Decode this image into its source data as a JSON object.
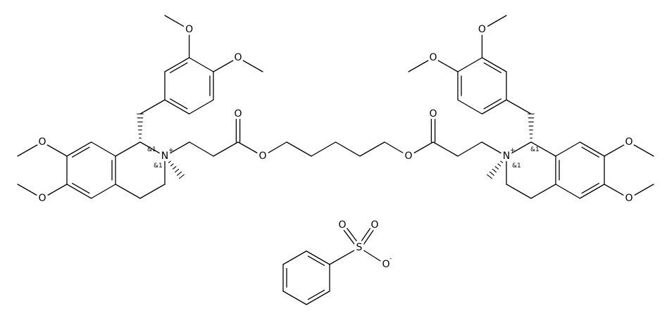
{
  "atoms": [
    {
      "label": "O"
    },
    {
      "label": "O"
    },
    {
      "label": "O"
    },
    {
      "label": "O"
    },
    {
      "label": "N",
      "charge": "+"
    },
    {
      "label": "O"
    },
    {
      "label": "O"
    },
    {
      "label": "O"
    },
    {
      "label": "O"
    },
    {
      "label": "N",
      "charge": "+"
    },
    {
      "label": "O"
    },
    {
      "label": "O"
    },
    {
      "label": "O"
    },
    {
      "label": "O"
    },
    {
      "label": "S"
    },
    {
      "label": "O"
    },
    {
      "label": "O"
    },
    {
      "label": "O",
      "charge": "-"
    }
  ],
  "stereo_labels": [
    "&1",
    "&1",
    "&1",
    "&1"
  ]
}
